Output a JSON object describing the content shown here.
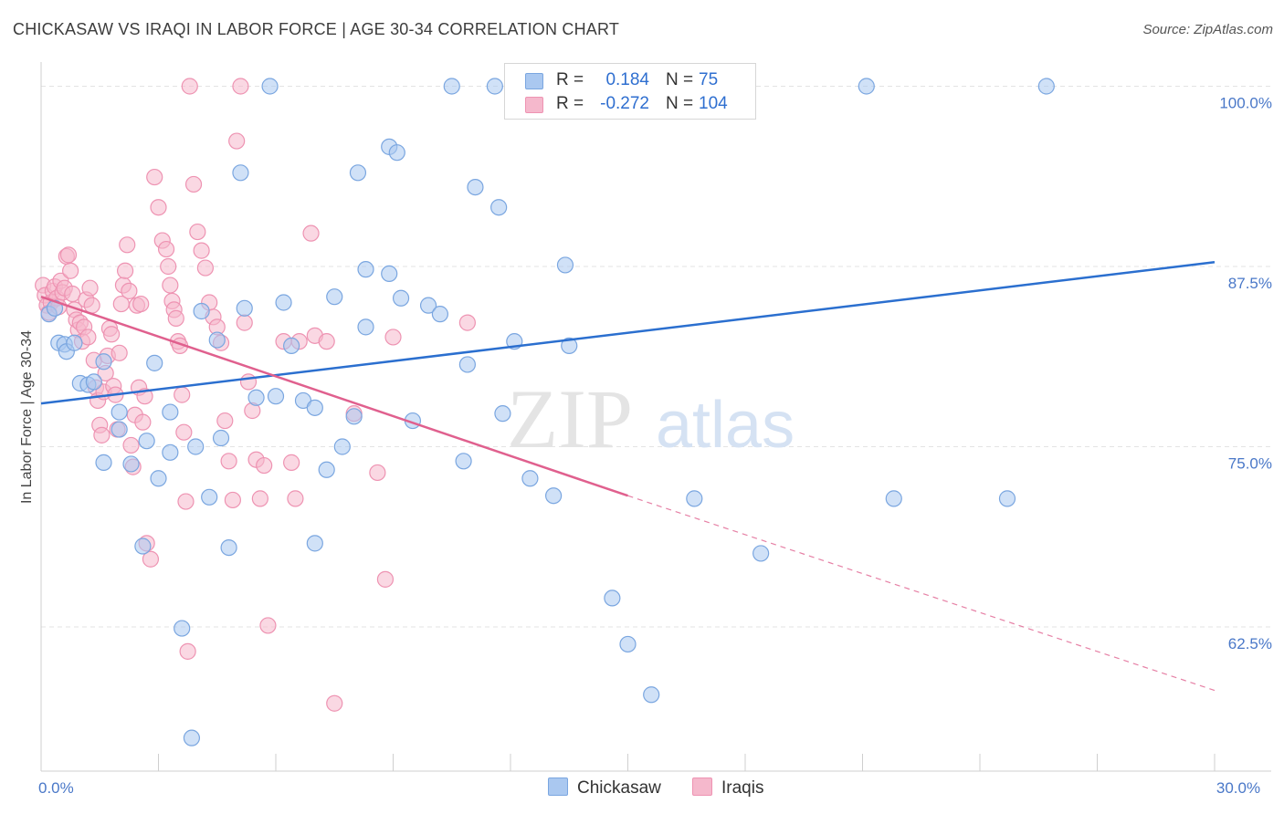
{
  "header": {
    "title": "CHICKASAW VS IRAQI IN LABOR FORCE | AGE 30-34 CORRELATION CHART",
    "source": "Source: ZipAtlas.com"
  },
  "legend": {
    "rows": [
      {
        "r_label": "R =",
        "r_value": "0.184",
        "n_label": "N =",
        "n_value": "75"
      },
      {
        "r_label": "R =",
        "r_value": "-0.272",
        "n_label": "N =",
        "n_value": "104"
      }
    ]
  },
  "watermark": {
    "zip": "ZIP",
    "atlas": "atlas"
  },
  "colors": {
    "chickasaw_fill": "#aac8f0",
    "chickasaw_stroke": "#7aa6e0",
    "chickasaw_line": "#2b6fcf",
    "iraqis_fill": "#f5b8cc",
    "iraqis_stroke": "#ee93b2",
    "iraqis_line": "#e0608e"
  },
  "chart_data": {
    "type": "scatter",
    "ylabel": "In Labor Force | Age 30-34",
    "xlim": [
      0,
      30
    ],
    "ylim": [
      52.5,
      102.5
    ],
    "x_tick_labels": [
      {
        "value": 0,
        "label": "0.0%"
      },
      {
        "value": 30,
        "label": "30.0%"
      }
    ],
    "y_tick_labels": [
      {
        "value": 100,
        "label": "100.0%"
      },
      {
        "value": 87.5,
        "label": "87.5%"
      },
      {
        "value": 75,
        "label": "75.0%"
      },
      {
        "value": 62.5,
        "label": "62.5%"
      }
    ],
    "grid": true,
    "legend_position": "top-center",
    "series": [
      {
        "name": "Chickasaw",
        "trend": {
          "x": [
            0,
            30
          ],
          "y": [
            78.0,
            87.8
          ]
        },
        "points": [
          [
            0.2,
            84.2
          ],
          [
            0.35,
            84.6
          ],
          [
            0.45,
            82.2
          ],
          [
            0.6,
            82.1
          ],
          [
            0.65,
            81.6
          ],
          [
            0.85,
            82.2
          ],
          [
            1.0,
            79.4
          ],
          [
            1.2,
            79.3
          ],
          [
            1.35,
            79.5
          ],
          [
            1.6,
            80.9
          ],
          [
            2.0,
            77.4
          ],
          [
            2.0,
            76.2
          ],
          [
            1.6,
            73.9
          ],
          [
            2.3,
            73.8
          ],
          [
            2.6,
            68.1
          ],
          [
            2.7,
            75.4
          ],
          [
            2.9,
            80.8
          ],
          [
            3.0,
            72.8
          ],
          [
            3.3,
            74.6
          ],
          [
            3.3,
            77.4
          ],
          [
            3.6,
            62.4
          ],
          [
            3.85,
            54.8
          ],
          [
            3.95,
            75.0
          ],
          [
            4.1,
            84.4
          ],
          [
            4.3,
            71.5
          ],
          [
            4.5,
            82.4
          ],
          [
            4.6,
            75.6
          ],
          [
            4.8,
            68.0
          ],
          [
            5.1,
            94.0
          ],
          [
            5.2,
            84.6
          ],
          [
            5.5,
            78.4
          ],
          [
            5.85,
            100.0
          ],
          [
            6.0,
            78.5
          ],
          [
            6.2,
            85.0
          ],
          [
            6.4,
            82.0
          ],
          [
            6.7,
            78.2
          ],
          [
            7.0,
            77.7
          ],
          [
            7.0,
            68.3
          ],
          [
            7.3,
            73.4
          ],
          [
            7.5,
            85.4
          ],
          [
            7.7,
            75.0
          ],
          [
            8.0,
            77.1
          ],
          [
            8.1,
            94.0
          ],
          [
            8.3,
            83.3
          ],
          [
            8.3,
            87.3
          ],
          [
            8.9,
            87.0
          ],
          [
            8.9,
            95.8
          ],
          [
            9.1,
            95.4
          ],
          [
            9.2,
            85.3
          ],
          [
            9.5,
            76.8
          ],
          [
            9.9,
            84.8
          ],
          [
            10.2,
            84.2
          ],
          [
            10.5,
            100.0
          ],
          [
            10.8,
            74.0
          ],
          [
            10.9,
            80.7
          ],
          [
            11.1,
            93.0
          ],
          [
            11.6,
            100.0
          ],
          [
            11.7,
            91.6
          ],
          [
            11.8,
            77.3
          ],
          [
            12.1,
            82.3
          ],
          [
            12.5,
            72.8
          ],
          [
            13.1,
            71.6
          ],
          [
            13.4,
            87.6
          ],
          [
            13.5,
            82.0
          ],
          [
            14.6,
            64.5
          ],
          [
            15.0,
            61.3
          ],
          [
            15.6,
            57.8
          ],
          [
            16.7,
            71.4
          ],
          [
            17.1,
            100.0
          ],
          [
            17.6,
            100.0
          ],
          [
            18.4,
            67.6
          ],
          [
            21.1,
            100.0
          ],
          [
            21.8,
            71.4
          ],
          [
            24.7,
            71.4
          ],
          [
            25.7,
            100.0
          ]
        ]
      },
      {
        "name": "Iraqis",
        "trend": {
          "x": [
            0,
            15
          ],
          "y": [
            85.4,
            71.6
          ]
        },
        "trend_dashed": {
          "x": [
            15,
            30
          ],
          "y": [
            71.6,
            58.1
          ]
        },
        "points": [
          [
            0.05,
            86.2
          ],
          [
            0.1,
            85.5
          ],
          [
            0.15,
            84.8
          ],
          [
            0.2,
            84.3
          ],
          [
            0.25,
            85.0
          ],
          [
            0.3,
            85.8
          ],
          [
            0.35,
            86.1
          ],
          [
            0.4,
            85.3
          ],
          [
            0.45,
            84.7
          ],
          [
            0.5,
            86.5
          ],
          [
            0.55,
            85.7
          ],
          [
            0.6,
            86.0
          ],
          [
            0.65,
            88.2
          ],
          [
            0.7,
            88.3
          ],
          [
            0.75,
            87.2
          ],
          [
            0.8,
            85.6
          ],
          [
            0.85,
            84.5
          ],
          [
            0.9,
            83.8
          ],
          [
            0.95,
            83.1
          ],
          [
            1.0,
            83.6
          ],
          [
            1.05,
            82.3
          ],
          [
            1.1,
            83.3
          ],
          [
            1.15,
            85.2
          ],
          [
            1.2,
            82.6
          ],
          [
            1.25,
            86.0
          ],
          [
            1.3,
            84.8
          ],
          [
            1.35,
            81.0
          ],
          [
            1.4,
            79.1
          ],
          [
            1.45,
            78.2
          ],
          [
            1.5,
            76.5
          ],
          [
            1.55,
            75.8
          ],
          [
            1.6,
            78.8
          ],
          [
            1.65,
            80.1
          ],
          [
            1.7,
            81.3
          ],
          [
            1.75,
            83.2
          ],
          [
            1.8,
            82.8
          ],
          [
            1.85,
            79.2
          ],
          [
            1.9,
            78.6
          ],
          [
            1.95,
            76.2
          ],
          [
            2.0,
            81.5
          ],
          [
            2.05,
            84.9
          ],
          [
            2.1,
            86.2
          ],
          [
            2.15,
            87.2
          ],
          [
            2.2,
            89.0
          ],
          [
            2.25,
            85.8
          ],
          [
            2.3,
            75.1
          ],
          [
            2.35,
            73.6
          ],
          [
            2.4,
            77.2
          ],
          [
            2.45,
            84.8
          ],
          [
            2.5,
            79.1
          ],
          [
            2.55,
            84.9
          ],
          [
            2.6,
            76.7
          ],
          [
            2.65,
            78.5
          ],
          [
            2.7,
            68.3
          ],
          [
            2.8,
            67.2
          ],
          [
            2.9,
            93.7
          ],
          [
            3.0,
            91.6
          ],
          [
            3.1,
            89.3
          ],
          [
            3.2,
            88.7
          ],
          [
            3.25,
            87.5
          ],
          [
            3.3,
            86.2
          ],
          [
            3.35,
            85.1
          ],
          [
            3.4,
            84.5
          ],
          [
            3.45,
            83.9
          ],
          [
            3.5,
            82.3
          ],
          [
            3.55,
            82.0
          ],
          [
            3.6,
            78.6
          ],
          [
            3.65,
            76.0
          ],
          [
            3.7,
            71.2
          ],
          [
            3.75,
            60.8
          ],
          [
            3.8,
            100.0
          ],
          [
            3.9,
            93.2
          ],
          [
            4.0,
            89.9
          ],
          [
            4.1,
            88.6
          ],
          [
            4.2,
            87.4
          ],
          [
            4.3,
            85.0
          ],
          [
            4.4,
            84.0
          ],
          [
            4.5,
            83.3
          ],
          [
            4.6,
            82.2
          ],
          [
            4.7,
            76.8
          ],
          [
            4.8,
            74.0
          ],
          [
            4.9,
            71.3
          ],
          [
            5.0,
            96.2
          ],
          [
            5.1,
            100.0
          ],
          [
            5.2,
            83.6
          ],
          [
            5.3,
            79.5
          ],
          [
            5.4,
            77.5
          ],
          [
            5.5,
            74.1
          ],
          [
            5.6,
            71.4
          ],
          [
            5.7,
            73.7
          ],
          [
            5.8,
            62.6
          ],
          [
            6.2,
            82.3
          ],
          [
            6.4,
            73.9
          ],
          [
            6.5,
            71.4
          ],
          [
            6.6,
            82.3
          ],
          [
            6.9,
            89.8
          ],
          [
            7.0,
            82.7
          ],
          [
            7.3,
            82.3
          ],
          [
            7.5,
            57.2
          ],
          [
            8.0,
            77.3
          ],
          [
            8.6,
            73.2
          ],
          [
            8.8,
            65.8
          ],
          [
            9.0,
            82.6
          ],
          [
            10.9,
            83.6
          ]
        ]
      }
    ]
  }
}
